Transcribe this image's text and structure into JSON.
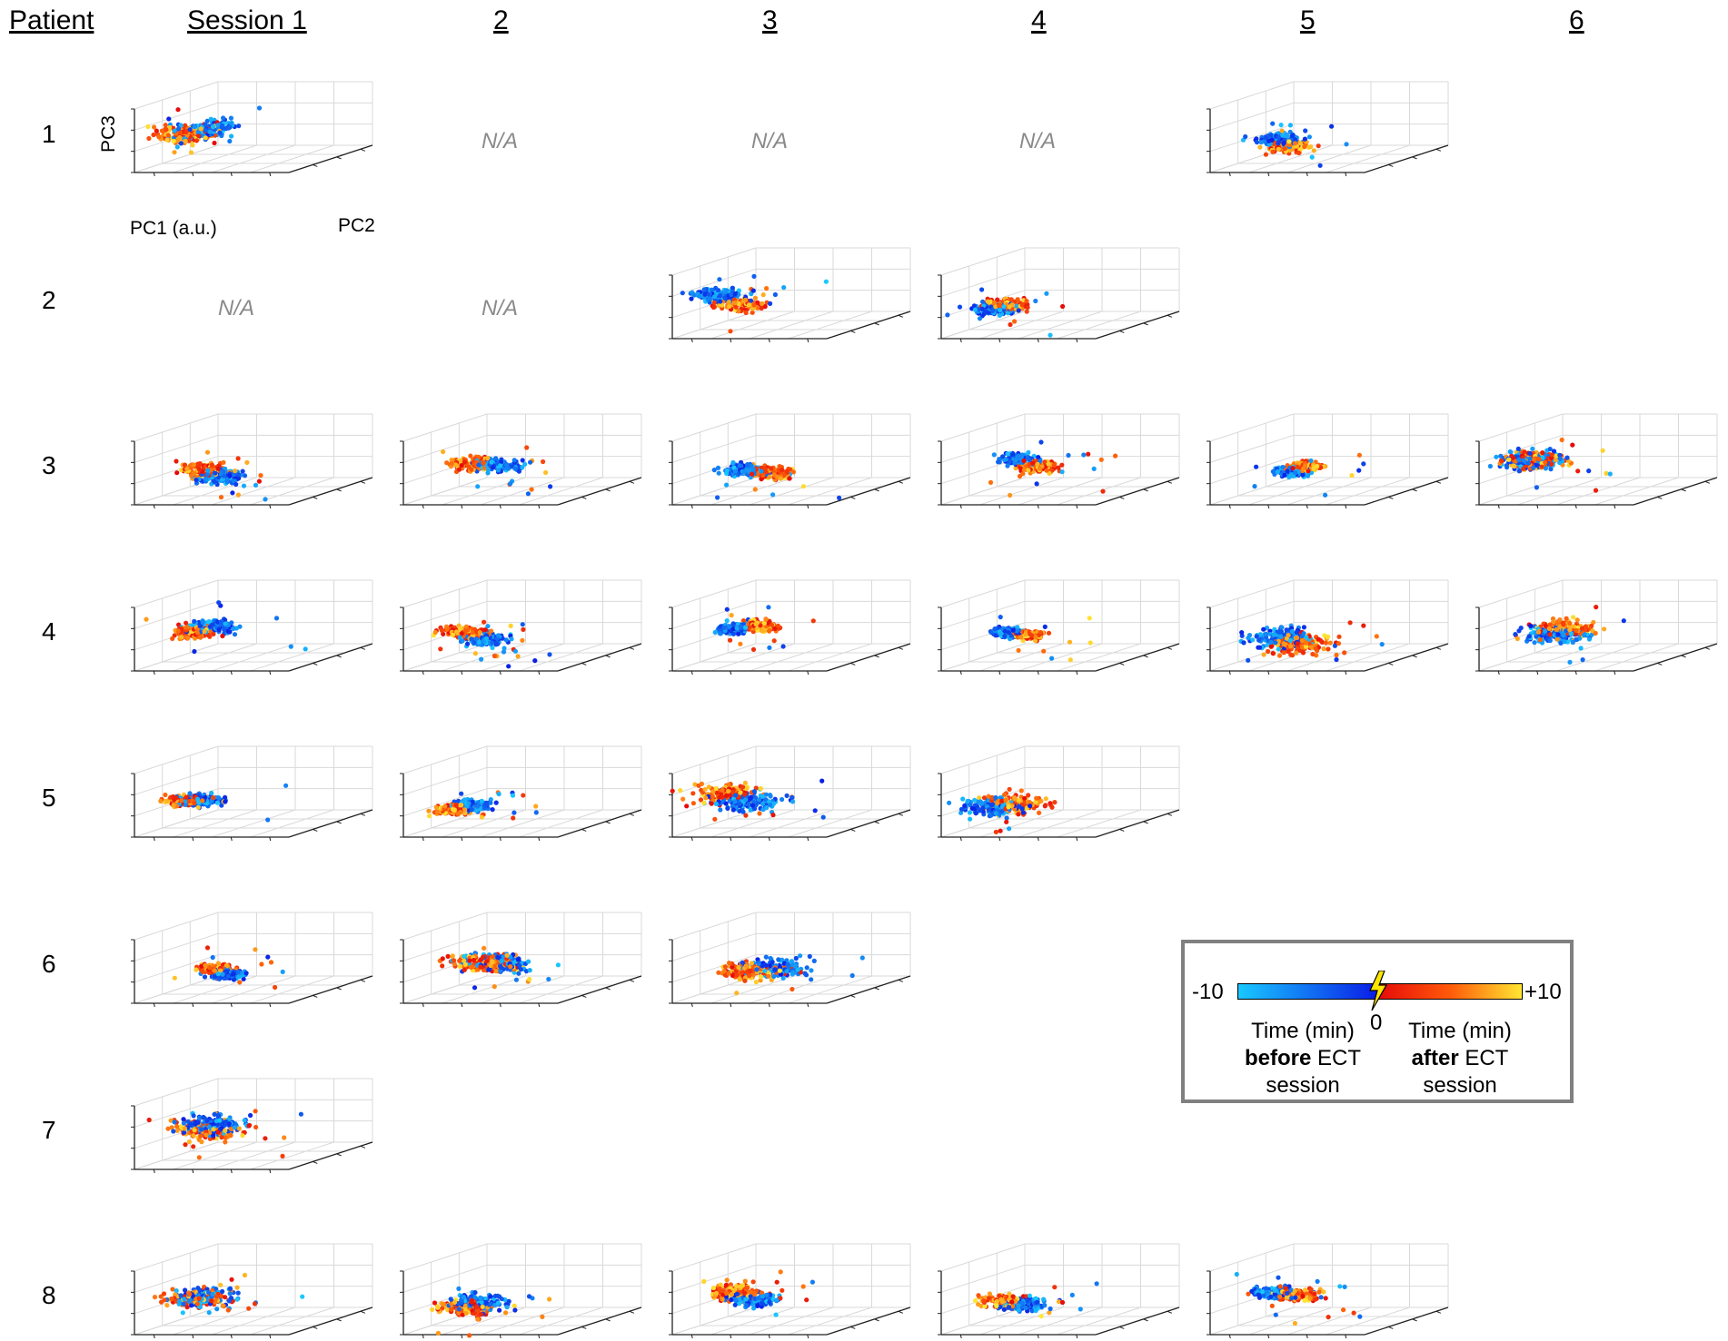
{
  "headers": {
    "patient": "Patient",
    "sessions": [
      "Session 1",
      "2",
      "3",
      "4",
      "5",
      "6"
    ]
  },
  "rows": [
    "1",
    "2",
    "3",
    "4",
    "5",
    "6",
    "7",
    "8"
  ],
  "na_label": "N/A",
  "axes": {
    "z_label": "PC3",
    "x_label": "PC1 (a.u.)",
    "y_label": "PC2"
  },
  "legend": {
    "min_label": "-10",
    "max_label": "+10",
    "zero_label": "0",
    "before_line1": "Time (min)",
    "before_bold": "before",
    "before_rest": " ECT",
    "before_line3": "session",
    "after_line1": "Time (min)",
    "after_bold": "after",
    "after_rest": " ECT",
    "after_line3": "session"
  },
  "colors": {
    "before_start": "#19c8ff",
    "before_end": "#0a1ee6",
    "after_start": "#e60a0a",
    "after_end": "#ffe632",
    "na_text": "#8a8a8a",
    "grid": "#d9d9d9",
    "axis": "#222222"
  },
  "chart_data": {
    "type": "scatter",
    "title": "",
    "description_axes": [
      "PC1 (a.u.)",
      "PC2",
      "PC3"
    ],
    "color_scale": {
      "label": "Time (min)",
      "min": -10,
      "max": 10,
      "center": 0
    },
    "panels": [
      {
        "patient": 1,
        "session": 1,
        "status": "plot",
        "seed": 11
      },
      {
        "patient": 1,
        "session": 2,
        "status": "N/A"
      },
      {
        "patient": 1,
        "session": 3,
        "status": "N/A"
      },
      {
        "patient": 1,
        "session": 4,
        "status": "N/A"
      },
      {
        "patient": 1,
        "session": 5,
        "status": "plot",
        "seed": 15
      },
      {
        "patient": 2,
        "session": 1,
        "status": "N/A"
      },
      {
        "patient": 2,
        "session": 2,
        "status": "N/A"
      },
      {
        "patient": 2,
        "session": 3,
        "status": "plot",
        "seed": 23
      },
      {
        "patient": 2,
        "session": 4,
        "status": "plot",
        "seed": 24
      },
      {
        "patient": 3,
        "session": 1,
        "status": "plot",
        "seed": 31
      },
      {
        "patient": 3,
        "session": 2,
        "status": "plot",
        "seed": 32
      },
      {
        "patient": 3,
        "session": 3,
        "status": "plot",
        "seed": 33
      },
      {
        "patient": 3,
        "session": 4,
        "status": "plot",
        "seed": 34
      },
      {
        "patient": 3,
        "session": 5,
        "status": "plot",
        "seed": 35
      },
      {
        "patient": 3,
        "session": 6,
        "status": "plot",
        "seed": 36
      },
      {
        "patient": 4,
        "session": 1,
        "status": "plot",
        "seed": 41
      },
      {
        "patient": 4,
        "session": 2,
        "status": "plot",
        "seed": 42
      },
      {
        "patient": 4,
        "session": 3,
        "status": "plot",
        "seed": 43
      },
      {
        "patient": 4,
        "session": 4,
        "status": "plot",
        "seed": 44
      },
      {
        "patient": 4,
        "session": 5,
        "status": "plot",
        "seed": 45
      },
      {
        "patient": 4,
        "session": 6,
        "status": "plot",
        "seed": 46
      },
      {
        "patient": 5,
        "session": 1,
        "status": "plot",
        "seed": 51
      },
      {
        "patient": 5,
        "session": 2,
        "status": "plot",
        "seed": 52
      },
      {
        "patient": 5,
        "session": 3,
        "status": "plot",
        "seed": 53
      },
      {
        "patient": 5,
        "session": 4,
        "status": "plot",
        "seed": 54
      },
      {
        "patient": 6,
        "session": 1,
        "status": "plot",
        "seed": 61
      },
      {
        "patient": 6,
        "session": 2,
        "status": "plot",
        "seed": 62
      },
      {
        "patient": 6,
        "session": 3,
        "status": "plot",
        "seed": 63
      },
      {
        "patient": 7,
        "session": 1,
        "status": "plot",
        "seed": 71
      },
      {
        "patient": 8,
        "session": 1,
        "status": "plot",
        "seed": 81
      },
      {
        "patient": 8,
        "session": 2,
        "status": "plot",
        "seed": 82
      },
      {
        "patient": 8,
        "session": 3,
        "status": "plot",
        "seed": 83
      },
      {
        "patient": 8,
        "session": 4,
        "status": "plot",
        "seed": 84
      },
      {
        "patient": 8,
        "session": 5,
        "status": "plot",
        "seed": 85
      }
    ]
  }
}
